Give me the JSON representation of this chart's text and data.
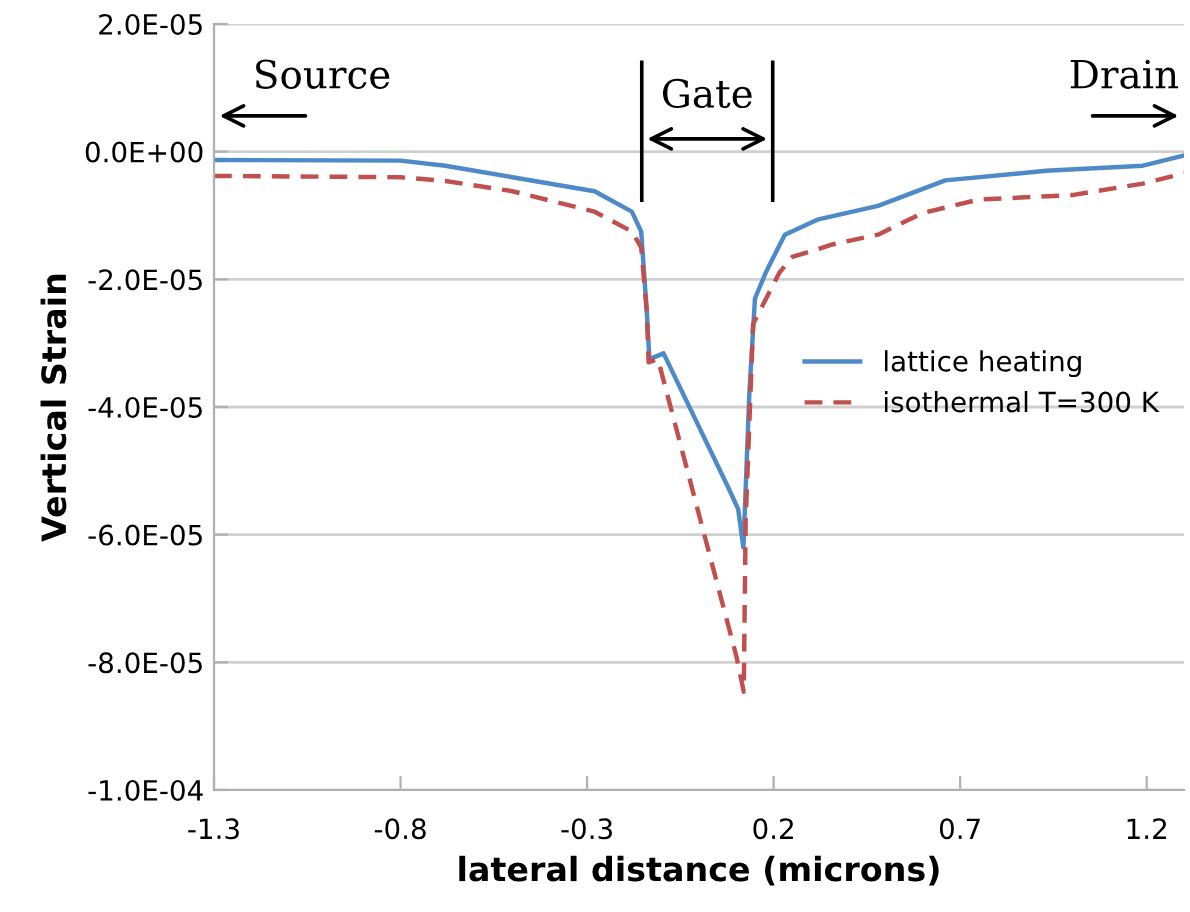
{
  "chart_data": {
    "type": "line",
    "xlabel": "lateral distance (microns)",
    "ylabel": "Vertical Strain",
    "xlim": [
      -1.3,
      1.3
    ],
    "xticks": [
      -1.3,
      -0.8,
      -0.3,
      0.2,
      0.7,
      1.2
    ],
    "ylim": [
      -0.0001,
      2e-05
    ],
    "yticks": [
      {
        "value": 2e-05,
        "label": "2.0E-05"
      },
      {
        "value": 0,
        "label": "0.0E+00"
      },
      {
        "value": -2e-05,
        "label": "-2.0E-05"
      },
      {
        "value": -4e-05,
        "label": "-4.0E-05"
      },
      {
        "value": -6e-05,
        "label": "-6.0E-05"
      },
      {
        "value": -8e-05,
        "label": "-8.0E-05"
      },
      {
        "value": -0.0001,
        "label": "-1.0E-04"
      }
    ],
    "grid": "y",
    "legend": "right",
    "marker": "none",
    "annotations": [
      "Source",
      "Gate",
      "Drain"
    ],
    "series": [
      {
        "name": "lattice heating",
        "color": "#4f8ac8",
        "line_style": "solid",
        "x": [
          -1.3,
          -0.8,
          -0.68,
          -0.5,
          -0.28,
          -0.18,
          -0.155,
          -0.14,
          -0.133,
          -0.095,
          0.08,
          0.105,
          0.119,
          0.135,
          0.15,
          0.18,
          0.23,
          0.32,
          0.48,
          0.66,
          0.93,
          1.19,
          1.3
        ],
        "values": [
          -1.3e-06,
          -1.4e-06,
          -2.2e-06,
          -4e-06,
          -6.2e-06,
          -9.4e-06,
          -1.25e-05,
          -2.5e-05,
          -3.25e-05,
          -3.16e-05,
          -5.28e-05,
          -5.6e-05,
          -6.2e-05,
          -3.78e-05,
          -2.3e-05,
          -1.88e-05,
          -1.3e-05,
          -1.06e-05,
          -8.5e-06,
          -4.5e-06,
          -3e-06,
          -2.2e-06,
          -6e-07
        ]
      },
      {
        "name": "isothermal T=300 K",
        "color": "#c0504d",
        "line_style": "dashed",
        "x": [
          -1.3,
          -0.8,
          -0.68,
          -0.5,
          -0.28,
          -0.18,
          -0.155,
          -0.14,
          -0.135,
          -0.11,
          0.1,
          0.12,
          0.125,
          0.145,
          0.215,
          0.25,
          0.36,
          0.48,
          0.6,
          0.75,
          1.0,
          1.19,
          1.3
        ],
        "values": [
          -3.8e-06,
          -4e-06,
          -4.6e-06,
          -6.2e-06,
          -9.4e-06,
          -1.25e-05,
          -1.5e-05,
          -2.5e-05,
          -3.3e-05,
          -3.25e-05,
          -7.9e-05,
          -8.46e-05,
          -5.8e-05,
          -2.7e-05,
          -1.9e-05,
          -1.65e-05,
          -1.45e-05,
          -1.3e-05,
          -9.6e-06,
          -7.5e-06,
          -6.8e-06,
          -5e-06,
          -3.4e-06
        ]
      }
    ]
  }
}
